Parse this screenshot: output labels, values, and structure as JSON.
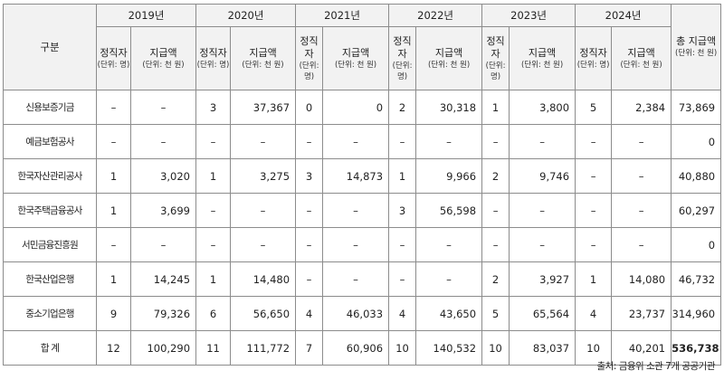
{
  "header": {
    "gubun": "구분",
    "years": [
      "2019년",
      "2020년",
      "2021년",
      "2022년",
      "2023년",
      "2024년"
    ],
    "col_count": "정직자",
    "col_count_narrow": "정직자",
    "col_count_unit": "(단위: 명)",
    "col_amount": "지급액",
    "col_amount_unit": "(단위: 천 원)",
    "total": "총 지급액",
    "total_unit": "(단위: 천 원)"
  },
  "rows": [
    {
      "name": "신용보증기금",
      "cells": [
        "–",
        "–",
        "3",
        "37,367",
        "0",
        "0",
        "2",
        "30,318",
        "1",
        "3,800",
        "5",
        "2,384"
      ],
      "total": "73,869"
    },
    {
      "name": "예금보험공사",
      "cells": [
        "–",
        "–",
        "–",
        "–",
        "–",
        "–",
        "–",
        "–",
        "–",
        "–",
        "–",
        "–"
      ],
      "total": "0"
    },
    {
      "name": "한국자산관리공사",
      "cells": [
        "1",
        "3,020",
        "1",
        "3,275",
        "3",
        "14,873",
        "1",
        "9,966",
        "2",
        "9,746",
        "–",
        "–"
      ],
      "total": "40,880"
    },
    {
      "name": "한국주택금융공사",
      "cells": [
        "1",
        "3,699",
        "–",
        "–",
        "–",
        "–",
        "3",
        "56,598",
        "–",
        "–",
        "–",
        "–"
      ],
      "total": "60,297"
    },
    {
      "name": "서민금융진흥원",
      "cells": [
        "–",
        "–",
        "–",
        "–",
        "–",
        "–",
        "–",
        "–",
        "–",
        "–",
        "–",
        "–"
      ],
      "total": "0"
    },
    {
      "name": "한국산업은행",
      "cells": [
        "1",
        "14,245",
        "1",
        "14,480",
        "–",
        "–",
        "–",
        "–",
        "2",
        "3,927",
        "1",
        "14,080"
      ],
      "total": "46,732"
    },
    {
      "name": "중소기업은행",
      "cells": [
        "9",
        "79,326",
        "6",
        "56,650",
        "4",
        "46,033",
        "4",
        "43,650",
        "5",
        "65,564",
        "4",
        "23,737"
      ],
      "total": "314,960"
    },
    {
      "name": "합 계",
      "cells": [
        "12",
        "100,290",
        "11",
        "111,772",
        "7",
        "60,906",
        "10",
        "140,532",
        "10",
        "83,037",
        "10",
        "40,201"
      ],
      "total": "536,738"
    }
  ],
  "source": "출처: 금융위 소관 7개 공공기관"
}
